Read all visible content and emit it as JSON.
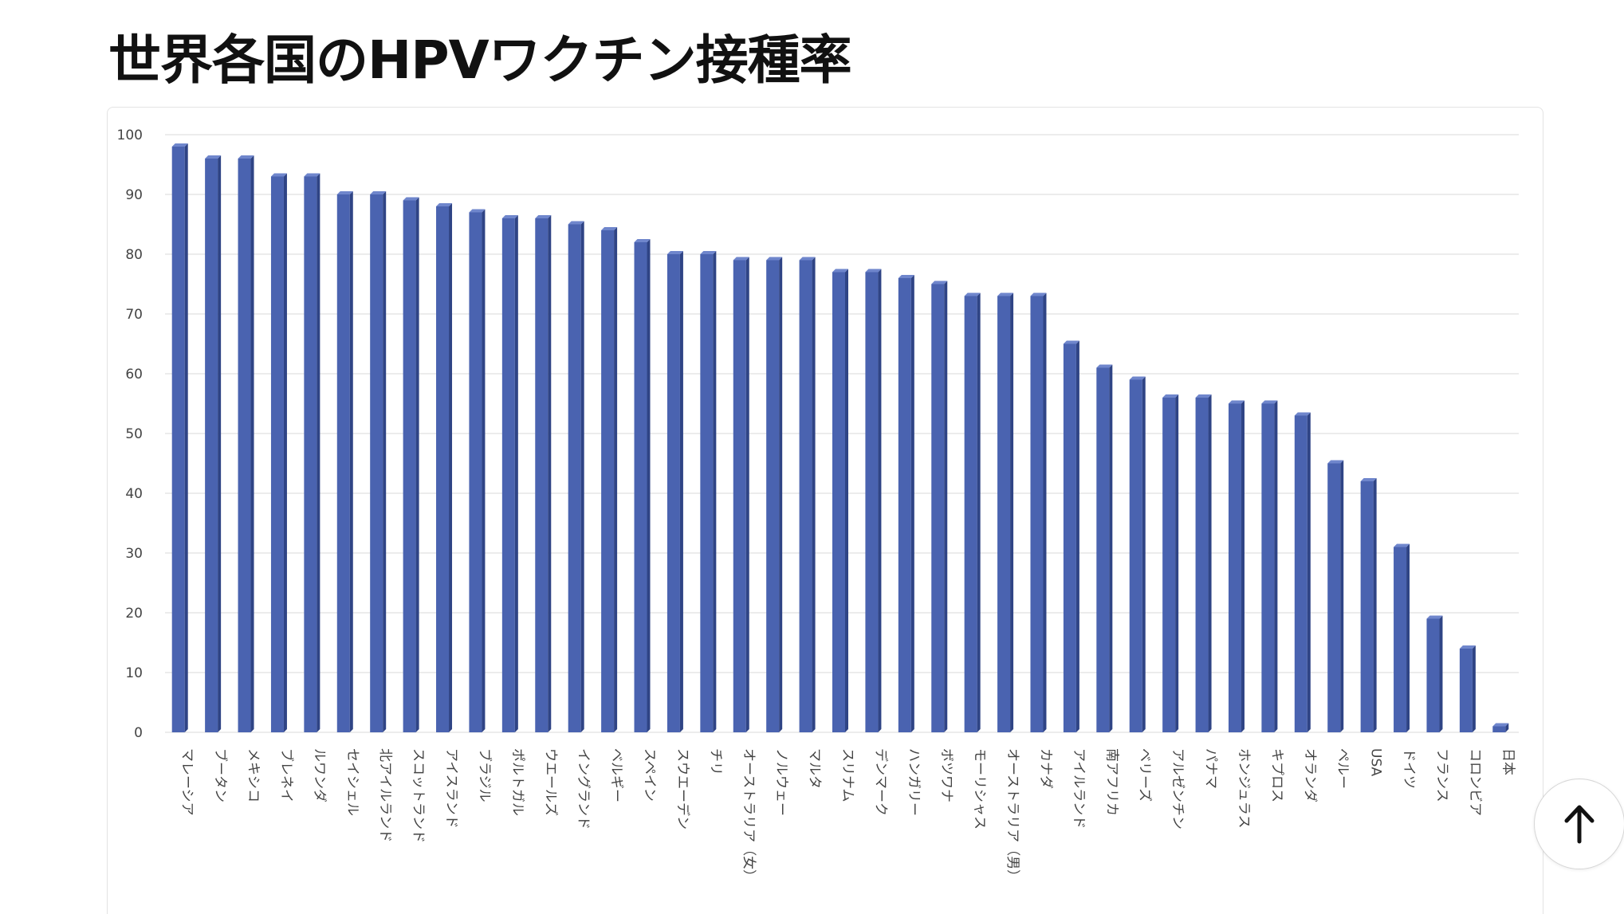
{
  "page": {
    "title": "世界各国のHPVワクチン接種率"
  },
  "scroll_top_button": {
    "icon": "arrow-up-icon"
  },
  "colors": {
    "bar": "#4a63b0",
    "bar_side": "#2f4485",
    "grid": "#e6e6e6",
    "tick_text": "#444444"
  },
  "chart_data": {
    "type": "bar",
    "title": "",
    "xlabel": "",
    "ylabel": "",
    "ylim": [
      0,
      100
    ],
    "yticks": [
      0,
      10,
      20,
      30,
      40,
      50,
      60,
      70,
      80,
      90,
      100
    ],
    "grid": true,
    "categories": [
      "マレーシア",
      "ブータン",
      "メキシコ",
      "ブレネイ",
      "ルワンダ",
      "セイシェル",
      "北アイルランド",
      "スコットランド",
      "アイスランド",
      "ブラジル",
      "ポルトガル",
      "ウエールズ",
      "イングランド",
      "ベルギー",
      "スペイン",
      "スウエーデン",
      "チリ",
      "オーストラリア（女）",
      "ノルウェー",
      "マルタ",
      "スリナム",
      "デンマーク",
      "ハンガリー",
      "ボツワナ",
      "モーリシャス",
      "オーストラリア（男）",
      "カナダ",
      "アイルランド",
      "南アフリカ",
      "ベリーズ",
      "アルゼンチン",
      "パナマ",
      "ホンジュラス",
      "キプロス",
      "オランダ",
      "ペルー",
      "USA",
      "ドイツ",
      "フランス",
      "コロンビア",
      "日本"
    ],
    "values": [
      98,
      96,
      96,
      93,
      93,
      90,
      90,
      89,
      88,
      87,
      86,
      86,
      85,
      84,
      82,
      80,
      80,
      79,
      79,
      79,
      77,
      77,
      76,
      75,
      73,
      73,
      73,
      65,
      61,
      59,
      56,
      56,
      55,
      55,
      53,
      45,
      42,
      31,
      19,
      14,
      1
    ]
  }
}
